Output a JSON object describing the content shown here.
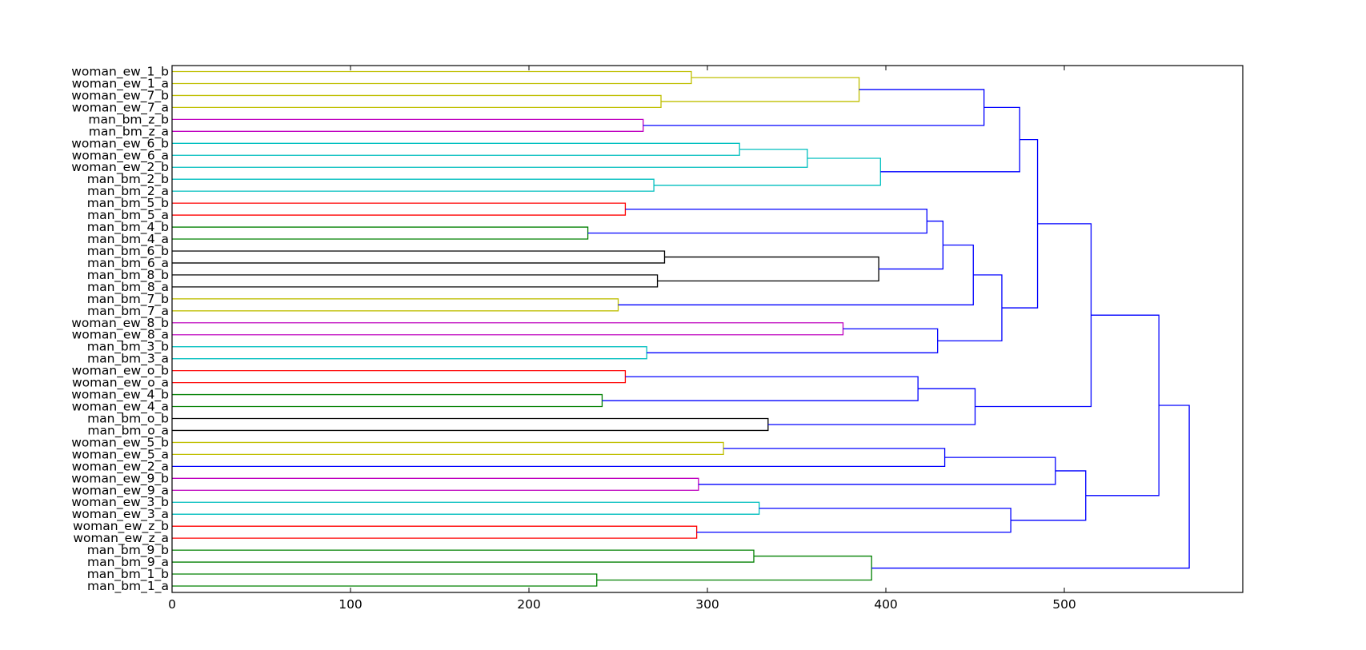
{
  "chart_data": {
    "type": "dendrogram",
    "orientation": "horizontal",
    "title": "",
    "xlabel": "",
    "ylabel": "",
    "xlim": [
      0,
      600
    ],
    "xticks": [
      0,
      100,
      200,
      300,
      400,
      500
    ],
    "xtick_labels": [
      "0",
      "100",
      "200",
      "300",
      "400",
      "500"
    ],
    "leaves": [
      "woman_ew_1_b",
      "woman_ew_1_a",
      "woman_ew_7_b",
      "woman_ew_7_a",
      "man_bm_z_b",
      "man_bm_z_a",
      "woman_ew_6_b",
      "woman_ew_6_a",
      "woman_ew_2_b",
      "man_bm_2_b",
      "man_bm_2_a",
      "man_bm_5_b",
      "man_bm_5_a",
      "man_bm_4_b",
      "man_bm_4_a",
      "man_bm_6_b",
      "man_bm_6_a",
      "man_bm_8_b",
      "man_bm_8_a",
      "man_bm_7_b",
      "man_bm_7_a",
      "woman_ew_8_b",
      "woman_ew_8_a",
      "man_bm_3_b",
      "man_bm_3_a",
      "woman_ew_o_b",
      "woman_ew_o_a",
      "woman_ew_4_b",
      "woman_ew_4_a",
      "man_bm_o_b",
      "man_bm_o_a",
      "woman_ew_5_b",
      "woman_ew_5_a",
      "woman_ew_2_a",
      "woman_ew_9_b",
      "woman_ew_9_a",
      "woman_ew_3_b",
      "woman_ew_3_a",
      "woman_ew_z_b",
      "woman_ew_z_a",
      "man_bm_9_b",
      "man_bm_9_a",
      "man_bm_1_b",
      "man_bm_1_a"
    ],
    "colors": {
      "yellow": "#bfbf00",
      "magenta": "#bf00bf",
      "cyan": "#00bfbf",
      "red": "#ff0000",
      "green": "#008000",
      "black": "#000000",
      "blue": "#0000ff",
      "frame": "#000000"
    },
    "merges": [
      {
        "id": "n1",
        "a": "woman_ew_1_b",
        "b": "woman_ew_1_a",
        "height": 291,
        "color": "yellow"
      },
      {
        "id": "n2",
        "a": "woman_ew_7_b",
        "b": "woman_ew_7_a",
        "height": 274,
        "color": "yellow"
      },
      {
        "id": "n3",
        "a": "n1",
        "b": "n2",
        "height": 385,
        "color": "yellow"
      },
      {
        "id": "n4",
        "a": "man_bm_z_b",
        "b": "man_bm_z_a",
        "height": 264,
        "color": "magenta"
      },
      {
        "id": "n5",
        "a": "n3",
        "b": "n4",
        "height": 455,
        "color": "blue"
      },
      {
        "id": "n6",
        "a": "woman_ew_6_b",
        "b": "woman_ew_6_a",
        "height": 318,
        "color": "cyan"
      },
      {
        "id": "n7",
        "a": "n6",
        "b": "woman_ew_2_b",
        "height": 356,
        "color": "cyan"
      },
      {
        "id": "n8",
        "a": "man_bm_2_b",
        "b": "man_bm_2_a",
        "height": 270,
        "color": "cyan"
      },
      {
        "id": "n9",
        "a": "n7",
        "b": "n8",
        "height": 397,
        "color": "cyan"
      },
      {
        "id": "n10",
        "a": "n5",
        "b": "n9",
        "height": 475,
        "color": "blue"
      },
      {
        "id": "n11",
        "a": "man_bm_5_b",
        "b": "man_bm_5_a",
        "height": 254,
        "color": "red"
      },
      {
        "id": "n12",
        "a": "man_bm_4_b",
        "b": "man_bm_4_a",
        "height": 233,
        "color": "green"
      },
      {
        "id": "n13",
        "a": "n11",
        "b": "n12",
        "height": 423,
        "color": "blue"
      },
      {
        "id": "n14",
        "a": "man_bm_6_b",
        "b": "man_bm_6_a",
        "height": 276,
        "color": "black"
      },
      {
        "id": "n15",
        "a": "man_bm_8_b",
        "b": "man_bm_8_a",
        "height": 272,
        "color": "black"
      },
      {
        "id": "n16",
        "a": "n14",
        "b": "n15",
        "height": 396,
        "color": "black"
      },
      {
        "id": "n17",
        "a": "n13",
        "b": "n16",
        "height": 432,
        "color": "blue"
      },
      {
        "id": "n18",
        "a": "man_bm_7_b",
        "b": "man_bm_7_a",
        "height": 250,
        "color": "yellow"
      },
      {
        "id": "n19",
        "a": "n17",
        "b": "n18",
        "height": 449,
        "color": "blue"
      },
      {
        "id": "n20",
        "a": "woman_ew_8_b",
        "b": "woman_ew_8_a",
        "height": 376,
        "color": "magenta"
      },
      {
        "id": "n21",
        "a": "man_bm_3_b",
        "b": "man_bm_3_a",
        "height": 266,
        "color": "cyan"
      },
      {
        "id": "n22",
        "a": "n20",
        "b": "n21",
        "height": 429,
        "color": "blue"
      },
      {
        "id": "n23",
        "a": "n19",
        "b": "n22",
        "height": 465,
        "color": "blue"
      },
      {
        "id": "n24",
        "a": "n10",
        "b": "n23",
        "height": 485,
        "color": "blue"
      },
      {
        "id": "n25",
        "a": "woman_ew_o_b",
        "b": "woman_ew_o_a",
        "height": 254,
        "color": "red"
      },
      {
        "id": "n26",
        "a": "woman_ew_4_b",
        "b": "woman_ew_4_a",
        "height": 241,
        "color": "green"
      },
      {
        "id": "n27",
        "a": "n25",
        "b": "n26",
        "height": 418,
        "color": "blue"
      },
      {
        "id": "n28",
        "a": "man_bm_o_b",
        "b": "man_bm_o_a",
        "height": 334,
        "color": "black"
      },
      {
        "id": "n29",
        "a": "n27",
        "b": "n28",
        "height": 450,
        "color": "blue"
      },
      {
        "id": "n30",
        "a": "n24",
        "b": "n29",
        "height": 515,
        "color": "blue"
      },
      {
        "id": "n31",
        "a": "woman_ew_5_b",
        "b": "woman_ew_5_a",
        "height": 309,
        "color": "yellow"
      },
      {
        "id": "n32",
        "a": "n31",
        "b": "woman_ew_2_a",
        "height": 433,
        "color": "blue"
      },
      {
        "id": "n33",
        "a": "woman_ew_9_b",
        "b": "woman_ew_9_a",
        "height": 295,
        "color": "magenta"
      },
      {
        "id": "n34",
        "a": "n32",
        "b": "n33",
        "height": 495,
        "color": "blue"
      },
      {
        "id": "n35",
        "a": "woman_ew_3_b",
        "b": "woman_ew_3_a",
        "height": 329,
        "color": "cyan"
      },
      {
        "id": "n36",
        "a": "woman_ew_z_b",
        "b": "woman_ew_z_a",
        "height": 294,
        "color": "red"
      },
      {
        "id": "n37",
        "a": "n35",
        "b": "n36",
        "height": 470,
        "color": "blue"
      },
      {
        "id": "n38",
        "a": "n34",
        "b": "n37",
        "height": 512,
        "color": "blue"
      },
      {
        "id": "n39",
        "a": "n30",
        "b": "n38",
        "height": 553,
        "color": "blue"
      },
      {
        "id": "n40",
        "a": "man_bm_9_b",
        "b": "man_bm_9_a",
        "height": 326,
        "color": "green"
      },
      {
        "id": "n41",
        "a": "man_bm_1_b",
        "b": "man_bm_1_a",
        "height": 238,
        "color": "green"
      },
      {
        "id": "n42",
        "a": "n40",
        "b": "n41",
        "height": 392,
        "color": "green"
      },
      {
        "id": "n43",
        "a": "n39",
        "b": "n42",
        "height": 570,
        "color": "blue"
      }
    ]
  }
}
